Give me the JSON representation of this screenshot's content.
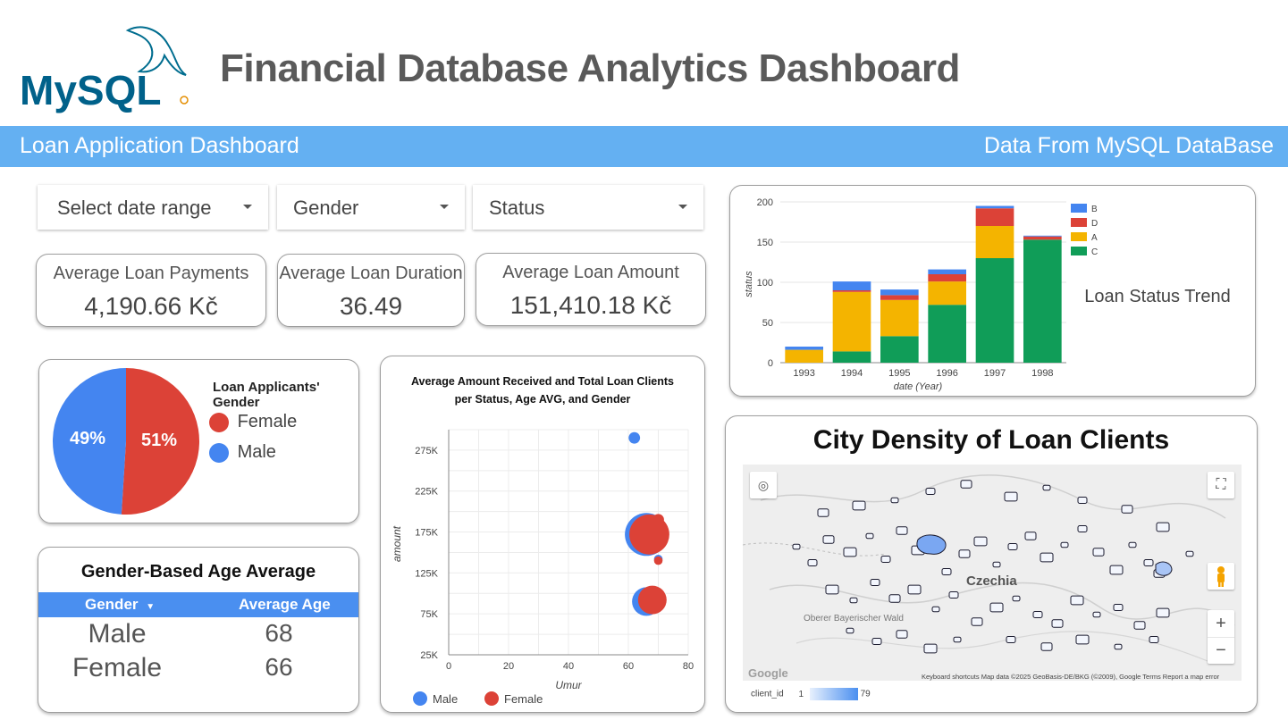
{
  "header": {
    "logo_text": "MySQL",
    "title": "Financial Database Analytics Dashboard"
  },
  "banner": {
    "left_label": "Loan Application Dashboard",
    "right_label": "Data From MySQL DataBase",
    "color": "#64b0f2"
  },
  "filters": {
    "date_range": "Select date range",
    "gender": "Gender",
    "status": "Status"
  },
  "kpis": [
    {
      "label": "Average Loan Payments",
      "value": "4,190.66 Kč"
    },
    {
      "label": "Average Loan Duration",
      "value": "36.49"
    },
    {
      "label": "Average Loan Amount",
      "value": "151,410.18 Kč"
    }
  ],
  "gender_pie": {
    "title": "Loan Applicants' Gender",
    "slices": [
      {
        "label": "Female",
        "value": 51,
        "text": "51%",
        "color": "#dc4237"
      },
      {
        "label": "Male",
        "value": 49,
        "text": "49%",
        "color": "#4485f0"
      }
    ]
  },
  "age_table": {
    "title": "Gender-Based Age Average",
    "columns": [
      "Gender",
      "Average Age"
    ],
    "rows": [
      {
        "gender": "Male",
        "age": "68"
      },
      {
        "gender": "Female",
        "age": "66"
      }
    ]
  },
  "bubble_chart": {
    "title_line1": "Average Amount Received and Total Loan Clients",
    "title_line2": "per Status, Age AVG, and Gender",
    "xlabel": "Umur",
    "ylabel": "amount",
    "x_ticks": [
      "0",
      "20",
      "40",
      "60",
      "80"
    ],
    "y_ticks": [
      "275K",
      "225K",
      "175K",
      "125K",
      "75K",
      "25K"
    ],
    "legend": [
      "Male",
      "Female"
    ]
  },
  "status_chart": {
    "title": "Loan Status Trend",
    "xlabel": "date (Year)",
    "ylabel": "status",
    "y_ticks": [
      "200",
      "150",
      "100",
      "50",
      "0"
    ],
    "legend": [
      {
        "label": "B",
        "color": "#4485f0"
      },
      {
        "label": "D",
        "color": "#dc4237"
      },
      {
        "label": "A",
        "color": "#f4b400"
      },
      {
        "label": "C",
        "color": "#109d58"
      }
    ]
  },
  "map": {
    "title": "City Density of Loan Clients",
    "country_label": "Czechia",
    "region_label": "Oberer Bayerischer Wald",
    "attribution": "Keyboard shortcuts   Map data ©2025 GeoBasis-DE/BKG (©2009), Google   Terms   Report a map error",
    "google_label": "Google",
    "legend_field": "client_id",
    "legend_min": "1",
    "legend_max": "79"
  },
  "chart_data": [
    {
      "type": "bar",
      "title": "Loan Status Trend",
      "xlabel": "date (Year)",
      "ylabel": "status",
      "categories": [
        "1993",
        "1994",
        "1995",
        "1996",
        "1997",
        "1998"
      ],
      "series": [
        {
          "name": "C",
          "values": [
            0,
            14,
            33,
            72,
            130,
            153
          ]
        },
        {
          "name": "A",
          "values": [
            16,
            74,
            45,
            29,
            40,
            0
          ]
        },
        {
          "name": "D",
          "values": [
            0,
            2,
            6,
            9,
            22,
            4
          ]
        },
        {
          "name": "B",
          "values": [
            4,
            11,
            7,
            6,
            3,
            1
          ]
        }
      ],
      "ylim": [
        0,
        200
      ],
      "stacked": true,
      "legend": "top-right"
    },
    {
      "type": "scatter",
      "title": "Average Amount Received and Total Loan Clients per Status, Age AVG, and Gender",
      "xlabel": "Umur",
      "ylabel": "amount",
      "xlim": [
        0,
        80
      ],
      "ylim": [
        25000,
        300000
      ],
      "series": [
        {
          "name": "Male",
          "points": [
            {
              "x": 62,
              "y": 290000,
              "size": 8
            },
            {
              "x": 66,
              "y": 172000,
              "size": 30
            },
            {
              "x": 70,
              "y": 142000,
              "size": 6
            },
            {
              "x": 66,
              "y": 90000,
              "size": 20
            }
          ]
        },
        {
          "name": "Female",
          "points": [
            {
              "x": 70,
              "y": 190000,
              "size": 8
            },
            {
              "x": 67,
              "y": 172000,
              "size": 28
            },
            {
              "x": 70,
              "y": 140000,
              "size": 6
            },
            {
              "x": 68,
              "y": 92000,
              "size": 20
            }
          ]
        }
      ],
      "legend": "bottom"
    },
    {
      "type": "pie",
      "title": "Loan Applicants' Gender",
      "labels": [
        "Female",
        "Male"
      ],
      "values": [
        51,
        49
      ]
    }
  ]
}
